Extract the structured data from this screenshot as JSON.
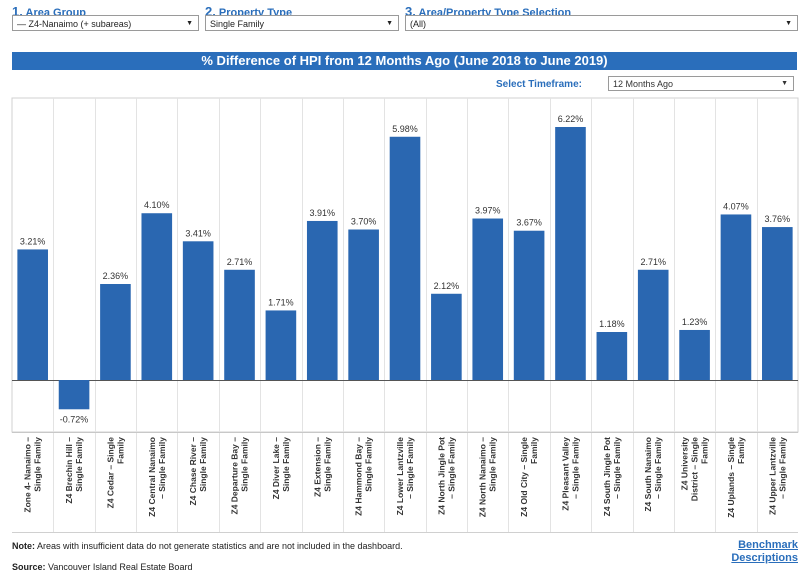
{
  "filters": [
    {
      "number": "1.",
      "label": "Area Group",
      "value": "— Z4-Nanaimo (+ subareas)"
    },
    {
      "number": "2.",
      "label": "Property Type",
      "value": "Single Family"
    },
    {
      "number": "3.",
      "label": "Area/Property Type Selection",
      "value": "(All)"
    }
  ],
  "banner_title": "% Difference of HPI from 12 Months Ago (June 2018 to June 2019)",
  "timeframe": {
    "label": "Select Timeframe:",
    "value": "12 Months Ago"
  },
  "note": {
    "prefix": "Note:",
    "text": "Areas with insufficient data do not generate statistics and are not included in the dashboard."
  },
  "source": {
    "prefix": "Source:",
    "text": "Vancouver Island Real Estate Board"
  },
  "benchmark_link": {
    "line1": "Benchmark",
    "line2": "Descriptions"
  },
  "colors": {
    "bar": "#2a67b1",
    "accent": "#2a6ebb"
  },
  "chart_data": {
    "type": "bar",
    "categories": [
      [
        "Zone 4- Nanaimo –",
        "Single Family"
      ],
      [
        "Z4 Brechin Hill –",
        "Single Family"
      ],
      [
        "Z4 Cedar – Single",
        "Family"
      ],
      [
        "Z4 Central Nanaimo",
        "– Single Family"
      ],
      [
        "Z4 Chase River –",
        "Single Family"
      ],
      [
        "Z4 Departure Bay –",
        "Single Family"
      ],
      [
        "Z4 Diver Lake –",
        "Single Family"
      ],
      [
        "Z4 Extension –",
        "Single Family"
      ],
      [
        "Z4 Hammond Bay –",
        "Single Family"
      ],
      [
        "Z4 Lower Lantzville",
        "– Single Family"
      ],
      [
        "Z4 North Jingle Pot",
        "– Single Family"
      ],
      [
        "Z4 North Nanaimo –",
        "Single Family"
      ],
      [
        "Z4 Old City – Single",
        "Family"
      ],
      [
        "Z4 Pleasant Valley",
        "– Single Family"
      ],
      [
        "Z4 South Jingle Pot",
        "– Single Family"
      ],
      [
        "Z4 South Nanaimo",
        "– Single Family"
      ],
      [
        "Z4 University",
        "District – Single",
        "Family"
      ],
      [
        "Z4 Uplands – Single",
        "Family"
      ],
      [
        "Z4 Upper Lantzville",
        "– Single Family"
      ]
    ],
    "values": [
      3.21,
      -0.72,
      2.36,
      4.1,
      3.41,
      2.71,
      1.71,
      3.91,
      3.7,
      5.98,
      2.12,
      3.97,
      3.67,
      6.22,
      1.18,
      2.71,
      1.23,
      4.07,
      3.76
    ],
    "value_labels": [
      "3.21%",
      "-0.72%",
      "2.36%",
      "4.10%",
      "3.41%",
      "2.71%",
      "1.71%",
      "3.91%",
      "3.70%",
      "5.98%",
      "2.12%",
      "3.97%",
      "3.67%",
      "6.22%",
      "1.18%",
      "2.71%",
      "1.23%",
      "4.07%",
      "3.76%"
    ],
    "title": "",
    "xlabel": "",
    "ylabel": "",
    "ylim": [
      -1.2,
      6.8
    ],
    "grid": false
  }
}
